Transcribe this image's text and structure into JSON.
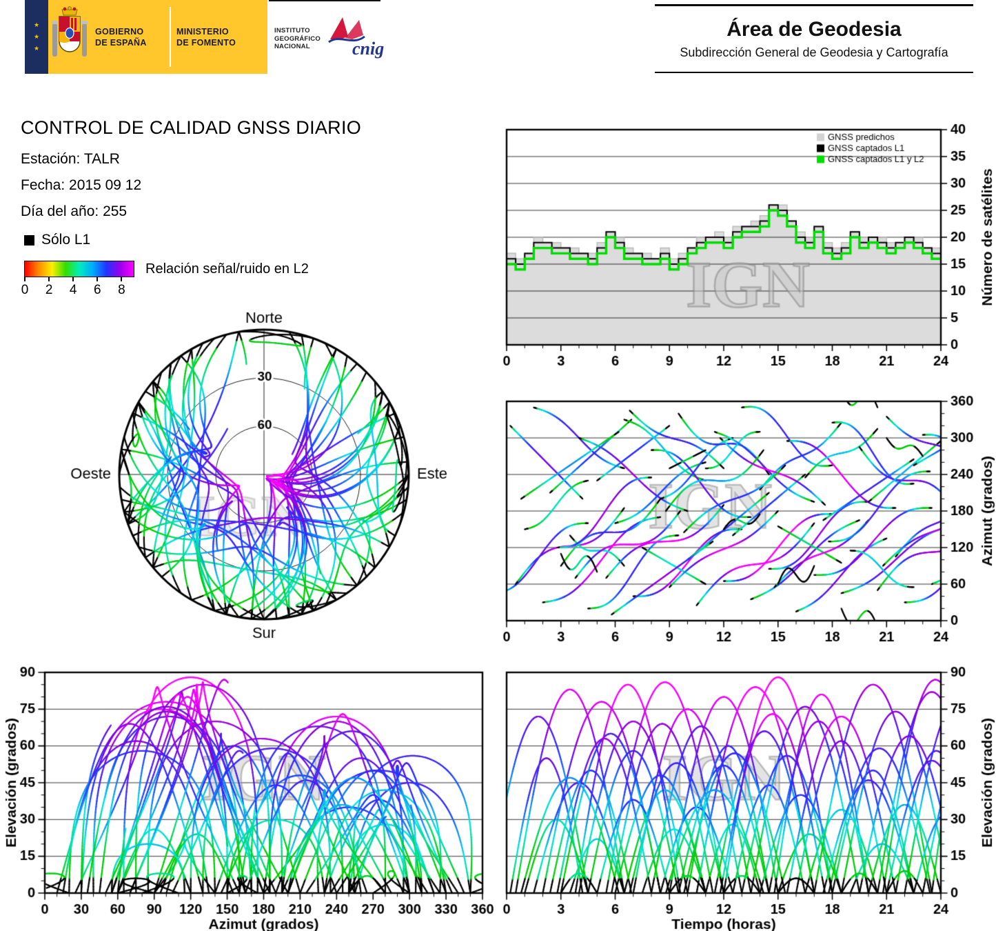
{
  "header": {
    "gobierno_lines": [
      "GOBIERNO",
      "DE ESPAÑA"
    ],
    "ministerio_lines": [
      "MINISTERIO",
      "DE FOMENTO"
    ],
    "instituto_lines": [
      "INSTITUTO",
      "GEOGRÁFICO",
      "NACIONAL"
    ],
    "cnig_label": "cnig",
    "area_title": "Área de Geodesia",
    "area_subtitle": "Subdirección General de Geodesia y Cartografía"
  },
  "report": {
    "title": "CONTROL DE CALIDAD GNSS DIARIO",
    "station_label": "Estación: TALR",
    "date_label": "Fecha: 2015 09 12",
    "doy_label": "Día del año: 255"
  },
  "legend": {
    "solo_l1_label": "Sólo L1",
    "snr_label": "Relación señal/ruido en L2",
    "snr_ticks": [
      0,
      2,
      4,
      6,
      8
    ],
    "snr_max": 9
  },
  "watermark": "IGN",
  "colors": {
    "banner_yellow": "#ffc72c",
    "predicted_fill": "#dcdcdc",
    "predicted_edge": "#bdbdbd",
    "l1_color": "#000000",
    "l1l2_color": "#00dd00",
    "solo_l1_color": "#000000",
    "track_colormap": [
      "#00cc00",
      "#00e5e5",
      "#2233ff",
      "#8800dd",
      "#ff00ff"
    ],
    "snr_gradient": [
      "#ff0000",
      "#ff8800",
      "#ffee00",
      "#33dd00",
      "#00eebb",
      "#00aaff",
      "#2233ff",
      "#9900ee",
      "#ff00ff"
    ]
  },
  "satellite_passes": [
    [
      -1.0,
      5.5,
      45,
      160,
      72
    ],
    [
      0.2,
      4.0,
      320,
      200,
      55
    ],
    [
      0.5,
      6.0,
      60,
      185,
      83
    ],
    [
      1.0,
      3.5,
      150,
      230,
      30
    ],
    [
      1.5,
      5.0,
      350,
      250,
      45
    ],
    [
      2.0,
      6.5,
      30,
      170,
      78
    ],
    [
      2.4,
      4.5,
      210,
      330,
      50
    ],
    [
      3.0,
      5.5,
      90,
      200,
      65
    ],
    [
      3.5,
      3.0,
      140,
      90,
      22
    ],
    [
      4.0,
      6.0,
      300,
      180,
      70
    ],
    [
      4.5,
      5.0,
      20,
      140,
      58
    ],
    [
      5.0,
      4.0,
      230,
      320,
      38
    ],
    [
      5.5,
      6.5,
      70,
      190,
      86
    ],
    [
      6.0,
      5.0,
      160,
      260,
      48
    ],
    [
      6.5,
      4.5,
      330,
      230,
      42
    ],
    [
      7.0,
      6.0,
      40,
      150,
      75
    ],
    [
      7.5,
      3.5,
      120,
      60,
      26
    ],
    [
      8.0,
      5.5,
      280,
      170,
      68
    ],
    [
      8.5,
      4.0,
      200,
      300,
      35
    ],
    [
      9.0,
      6.0,
      55,
      180,
      80
    ],
    [
      9.5,
      5.0,
      340,
      240,
      52
    ],
    [
      10.0,
      4.5,
      100,
      210,
      60
    ],
    [
      10.5,
      6.5,
      25,
      160,
      84
    ],
    [
      11.0,
      3.0,
      250,
      310,
      28
    ],
    [
      11.5,
      5.5,
      310,
      195,
      66
    ],
    [
      12.0,
      6.0,
      65,
      175,
      88
    ],
    [
      12.5,
      4.0,
      140,
      240,
      44
    ],
    [
      13.0,
      5.0,
      350,
      255,
      56
    ],
    [
      13.5,
      6.0,
      35,
      165,
      76
    ],
    [
      14.0,
      4.5,
      215,
      325,
      40
    ],
    [
      14.5,
      5.5,
      85,
      195,
      70
    ],
    [
      15.0,
      3.5,
      155,
      95,
      24
    ],
    [
      15.5,
      6.0,
      295,
      185,
      72
    ],
    [
      16.0,
      5.0,
      15,
      135,
      62
    ],
    [
      16.5,
      4.0,
      235,
      315,
      34
    ],
    [
      17.0,
      6.5,
      75,
      185,
      85
    ],
    [
      17.5,
      5.0,
      165,
      265,
      46
    ],
    [
      18.0,
      4.5,
      325,
      225,
      50
    ],
    [
      18.5,
      6.0,
      45,
      155,
      74
    ],
    [
      19.0,
      3.5,
      115,
      55,
      20
    ],
    [
      19.5,
      5.5,
      285,
      175,
      64
    ],
    [
      20.0,
      4.0,
      195,
      295,
      36
    ],
    [
      20.5,
      6.0,
      50,
      175,
      82
    ],
    [
      21.0,
      5.0,
      335,
      245,
      54
    ],
    [
      21.5,
      4.5,
      105,
      215,
      58
    ],
    [
      22.0,
      6.0,
      30,
      150,
      79
    ],
    [
      22.5,
      3.5,
      255,
      315,
      32
    ],
    [
      23.0,
      5.0,
      305,
      200,
      61
    ],
    [
      23.5,
      4.5,
      60,
      170,
      77
    ],
    [
      20.8,
      5.8,
      90,
      205,
      87
    ],
    [
      2.8,
      5.2,
      120,
      235,
      63
    ],
    [
      5.8,
      5.6,
      10,
      130,
      69
    ],
    [
      8.8,
      5.4,
      180,
      280,
      42
    ],
    [
      11.8,
      5.8,
      300,
      190,
      73
    ],
    [
      14.8,
      5.2,
      55,
      165,
      81
    ],
    [
      17.8,
      5.6,
      130,
      245,
      59
    ],
    [
      0.8,
      5.4,
      200,
      310,
      47
    ],
    [
      3.8,
      5.8,
      70,
      180,
      85
    ],
    [
      6.8,
      5.2,
      345,
      250,
      53
    ],
    [
      9.8,
      5.6,
      145,
      255,
      57
    ],
    [
      3.0,
      2.0,
      110,
      80,
      8
    ],
    [
      9.0,
      2.0,
      250,
      280,
      7
    ],
    [
      15.0,
      2.0,
      60,
      90,
      6
    ],
    [
      21.0,
      2.0,
      300,
      270,
      9
    ],
    [
      12.0,
      2.0,
      150,
      175,
      7
    ],
    [
      18.5,
      2.0,
      20,
      350,
      8
    ]
  ],
  "chart_data": [
    {
      "id": "sat_count",
      "type": "step-area",
      "ylabel": "Número de satélites",
      "xlim": [
        0,
        24
      ],
      "ylim": [
        0,
        40
      ],
      "xticks": [
        0,
        3,
        6,
        9,
        12,
        15,
        18,
        21,
        24
      ],
      "yticks": [
        0,
        5,
        10,
        15,
        20,
        25,
        30,
        35,
        40
      ],
      "xminor": 1,
      "yminor": 5,
      "label_side": "right",
      "grid": true,
      "legend": [
        {
          "label": "GNSS predichos",
          "color": "#d3d3d3"
        },
        {
          "label": "GNSS captados L1",
          "color": "#000000"
        },
        {
          "label": "GNSS captados L1 y L2",
          "color": "#00dd00"
        }
      ],
      "x_start": 0,
      "x_step": 0.5,
      "series": {
        "predichos": [
          17,
          16,
          17,
          20,
          19,
          19,
          18,
          18,
          17,
          17,
          19,
          21,
          20,
          18,
          17,
          17,
          16,
          18,
          16,
          17,
          18,
          20,
          20,
          21,
          20,
          22,
          22,
          23,
          24,
          26,
          26,
          23,
          21,
          20,
          22,
          19,
          18,
          19,
          21,
          20,
          20,
          20,
          19,
          19,
          20,
          20,
          18,
          18,
          17
        ],
        "captados_l1": [
          16,
          15,
          17,
          19,
          19,
          18,
          18,
          17,
          17,
          16,
          18,
          21,
          19,
          17,
          17,
          16,
          16,
          17,
          15,
          16,
          18,
          19,
          20,
          20,
          19,
          21,
          22,
          22,
          23,
          26,
          25,
          23,
          20,
          19,
          22,
          18,
          17,
          18,
          21,
          19,
          20,
          19,
          18,
          19,
          20,
          19,
          18,
          17,
          17
        ],
        "captados_l1_l2": [
          15,
          14,
          16,
          18,
          18,
          17,
          17,
          16,
          16,
          15,
          17,
          20,
          18,
          16,
          16,
          15,
          15,
          16,
          14,
          15,
          17,
          18,
          19,
          19,
          18,
          20,
          21,
          21,
          22,
          25,
          24,
          22,
          19,
          18,
          21,
          17,
          16,
          17,
          20,
          18,
          19,
          18,
          17,
          18,
          19,
          18,
          17,
          16,
          16
        ]
      }
    },
    {
      "id": "azimuth_time",
      "type": "tracks",
      "x_mode": "time",
      "y_mode": "azimuth",
      "ylabel": "Azimut (grados)",
      "xlim": [
        0,
        24
      ],
      "ylim": [
        0,
        360
      ],
      "xticks": [
        0,
        3,
        6,
        9,
        12,
        15,
        18,
        21,
        24
      ],
      "yticks": [
        0,
        60,
        120,
        180,
        240,
        300,
        360
      ],
      "xminor": 1,
      "yminor": 20,
      "label_side": "right",
      "grid": true,
      "series_source": "satellite_passes"
    },
    {
      "id": "elevation_azimuth",
      "type": "tracks",
      "x_mode": "azimuth",
      "y_mode": "elevation",
      "xlabel": "Azimut (grados)",
      "ylabel": "Elevación (grados)",
      "xlim": [
        0,
        360
      ],
      "ylim": [
        0,
        90
      ],
      "xticks": [
        0,
        30,
        60,
        90,
        120,
        150,
        180,
        210,
        240,
        270,
        300,
        330,
        360
      ],
      "yticks": [
        0,
        15,
        30,
        45,
        60,
        75,
        90
      ],
      "xminor": 10,
      "yminor": 5,
      "label_side": "left",
      "grid": true,
      "series_source": "satellite_passes"
    },
    {
      "id": "elevation_time",
      "type": "tracks",
      "x_mode": "time",
      "y_mode": "elevation",
      "xlabel": "Tiempo (horas)",
      "ylabel": "Elevación (grados)",
      "xlim": [
        0,
        24
      ],
      "ylim": [
        0,
        90
      ],
      "xticks": [
        0,
        3,
        6,
        9,
        12,
        15,
        18,
        21,
        24
      ],
      "yticks": [
        0,
        15,
        30,
        45,
        60,
        75,
        90
      ],
      "xminor": 1,
      "yminor": 5,
      "label_side": "right",
      "grid": true,
      "series_source": "satellite_passes"
    },
    {
      "id": "skyplot",
      "type": "polar-tracks",
      "labels": {
        "north": "Norte",
        "south": "Sur",
        "west": "Oeste",
        "east": "Este"
      },
      "elevation_rings": [
        30,
        60
      ],
      "series_source": "satellite_passes"
    }
  ]
}
